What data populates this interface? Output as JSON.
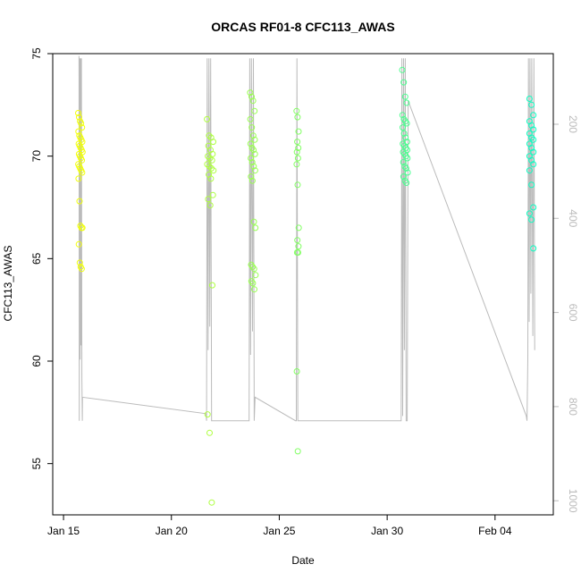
{
  "chart_data": {
    "type": "scatter",
    "title": "ORCAS RF01-8 CFC113_AWAS",
    "xlabel": "Date",
    "ylabel": "CFC113_AWAS",
    "y2label": "",
    "xlim": [
      -0.5,
      22.7
    ],
    "ylim": [
      52.5,
      75
    ],
    "y2lim": [
      1030,
      50
    ],
    "x_ticks": [
      {
        "value": 0,
        "label": "Jan 15"
      },
      {
        "value": 5,
        "label": "Jan 20"
      },
      {
        "value": 10,
        "label": "Jan 25"
      },
      {
        "value": 15,
        "label": "Jan 30"
      },
      {
        "value": 20,
        "label": "Feb 04"
      }
    ],
    "y_ticks": [
      {
        "value": 55,
        "label": "55"
      },
      {
        "value": 60,
        "label": "60"
      },
      {
        "value": 65,
        "label": "65"
      },
      {
        "value": 70,
        "label": "70"
      },
      {
        "value": 75,
        "label": "75"
      }
    ],
    "y2_ticks": [
      {
        "value": 200,
        "label": "200"
      },
      {
        "value": 400,
        "label": "400"
      },
      {
        "value": 600,
        "label": "600"
      },
      {
        "value": 800,
        "label": "800"
      },
      {
        "value": 1000,
        "label": "1000"
      }
    ],
    "point_color_scale": "yellow-to-cyan by date",
    "colors": {
      "start": "#ffff00",
      "end": "#00ffcc",
      "pressure_line": "#bbbbbb"
    },
    "flights": [
      {
        "x_min": 0.68,
        "x_max": 0.88,
        "values": [
          72.1,
          71.9,
          71.7,
          71.6,
          71.4,
          71.2,
          71.0,
          70.9,
          70.8,
          70.7,
          70.6,
          70.5,
          70.4,
          70.3,
          70.2,
          70.1,
          70.0,
          69.9,
          69.8,
          69.6,
          69.5,
          69.4,
          69.3,
          69.2,
          68.9,
          67.8,
          66.6,
          66.5,
          66.5,
          65.7,
          64.8,
          64.6,
          64.5
        ]
      },
      {
        "x_min": 6.65,
        "x_max": 6.95,
        "values": [
          71.8,
          71.0,
          70.9,
          70.7,
          70.5,
          70.3,
          70.1,
          70.0,
          69.9,
          69.8,
          69.6,
          69.5,
          69.4,
          69.3,
          69.1,
          68.9,
          68.1,
          67.9,
          67.6,
          63.7,
          57.4,
          56.5,
          53.1
        ]
      },
      {
        "x_min": 8.65,
        "x_max": 8.9,
        "values": [
          73.1,
          72.9,
          72.7,
          72.2,
          71.8,
          71.4,
          71.0,
          70.8,
          70.6,
          70.4,
          70.3,
          70.1,
          69.9,
          69.7,
          69.5,
          69.3,
          69.0,
          68.8,
          66.8,
          66.5,
          64.7,
          64.6,
          64.5,
          64.2,
          63.9,
          63.8,
          63.5
        ]
      },
      {
        "x_min": 10.8,
        "x_max": 10.9,
        "values": [
          72.2,
          71.9,
          71.2,
          70.7,
          70.4,
          70.2,
          69.9,
          69.6,
          68.6,
          66.5,
          65.9,
          65.6,
          65.3,
          65.3,
          59.5,
          55.6
        ]
      },
      {
        "x_min": 15.7,
        "x_max": 15.95,
        "values": [
          74.2,
          73.6,
          72.9,
          72.6,
          72.0,
          71.8,
          71.7,
          71.6,
          71.4,
          71.1,
          70.9,
          70.7,
          70.6,
          70.5,
          70.4,
          70.3,
          70.2,
          70.1,
          70.0,
          69.9,
          69.7,
          69.5,
          69.4,
          69.2,
          69.0,
          68.8,
          68.7
        ]
      },
      {
        "x_min": 21.6,
        "x_max": 21.85,
        "values": [
          72.8,
          72.5,
          72.0,
          71.7,
          71.5,
          71.3,
          71.1,
          70.9,
          70.8,
          70.6,
          70.4,
          70.2,
          70.0,
          69.8,
          69.6,
          69.3,
          68.6,
          67.5,
          67.2,
          66.9,
          65.5
        ]
      }
    ],
    "pressure_series": {
      "name": "",
      "points": [
        [
          0.72,
          55
        ],
        [
          0.73,
          830
        ],
        [
          0.75,
          60
        ],
        [
          0.77,
          700
        ],
        [
          0.79,
          60
        ],
        [
          0.81,
          670
        ],
        [
          0.83,
          60
        ],
        [
          0.85,
          740
        ],
        [
          0.87,
          830
        ],
        [
          0.88,
          780
        ],
        [
          6.6,
          815
        ],
        [
          6.63,
          830
        ],
        [
          6.66,
          60
        ],
        [
          6.7,
          680
        ],
        [
          6.74,
          60
        ],
        [
          6.78,
          630
        ],
        [
          6.82,
          60
        ],
        [
          6.86,
          830
        ],
        [
          6.92,
          830
        ],
        [
          7.5,
          830
        ],
        [
          8.55,
          830
        ],
        [
          8.6,
          830
        ],
        [
          8.63,
          60
        ],
        [
          8.67,
          690
        ],
        [
          8.71,
          60
        ],
        [
          8.76,
          640
        ],
        [
          8.8,
          60
        ],
        [
          8.84,
          830
        ],
        [
          8.88,
          780
        ],
        [
          10.75,
          830
        ],
        [
          10.79,
          830
        ],
        [
          10.82,
          60
        ],
        [
          10.86,
          830
        ],
        [
          15.65,
          830
        ],
        [
          15.68,
          60
        ],
        [
          15.72,
          820
        ],
        [
          15.76,
          60
        ],
        [
          15.8,
          680
        ],
        [
          15.84,
          60
        ],
        [
          15.88,
          830
        ],
        [
          15.93,
          830
        ],
        [
          15.97,
          150
        ],
        [
          21.45,
          820
        ],
        [
          21.48,
          830
        ],
        [
          21.52,
          700
        ],
        [
          21.55,
          60
        ],
        [
          21.58,
          620
        ],
        [
          21.62,
          60
        ],
        [
          21.66,
          560
        ],
        [
          21.7,
          60
        ],
        [
          21.75,
          650
        ],
        [
          21.8,
          60
        ],
        [
          21.84,
          680
        ]
      ]
    }
  }
}
